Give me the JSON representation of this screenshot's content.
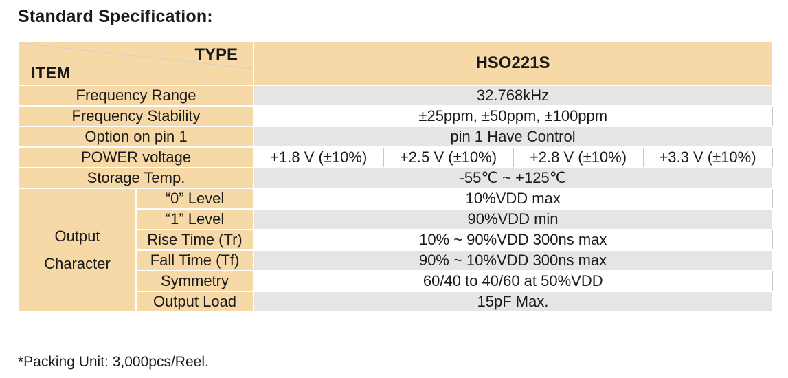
{
  "heading": "Standard Specification:",
  "table": {
    "corner_type": "TYPE",
    "corner_item": "ITEM",
    "model": "HSO221S",
    "frequency_range": {
      "label": "Frequency Range",
      "value": "32.768kHz"
    },
    "frequency_stability": {
      "label": "Frequency Stability",
      "value": "±25ppm, ±50ppm, ±100ppm"
    },
    "option_pin1": {
      "label": "Option on pin 1",
      "value": "pin 1 Have Control"
    },
    "power_voltage": {
      "label": "POWER voltage",
      "values": [
        "+1.8 V (±10%)",
        "+2.5 V (±10%)",
        "+2.8 V (±10%)",
        "+3.3 V (±10%)"
      ]
    },
    "storage_temp": {
      "label": "Storage Temp.",
      "value": "-55℃ ~ +125℃"
    },
    "output_character": {
      "label_line1": "Output",
      "label_line2": "Character",
      "rows": [
        {
          "label": "“0” Level",
          "value": "10%VDD max"
        },
        {
          "label": "“1” Level",
          "value": "90%VDD min"
        },
        {
          "label": "Rise Time (Tr)",
          "value": "10% ~ 90%VDD 300ns max"
        },
        {
          "label": "Fall Time (Tf)",
          "value": "90% ~ 10%VDD 300ns max"
        },
        {
          "label": "Symmetry",
          "value": "60/40 to 40/60 at 50%VDD"
        },
        {
          "label": "Output Load",
          "value": "15pF Max."
        }
      ]
    }
  },
  "footnote": "*Packing Unit: 3,000pcs/Reel."
}
